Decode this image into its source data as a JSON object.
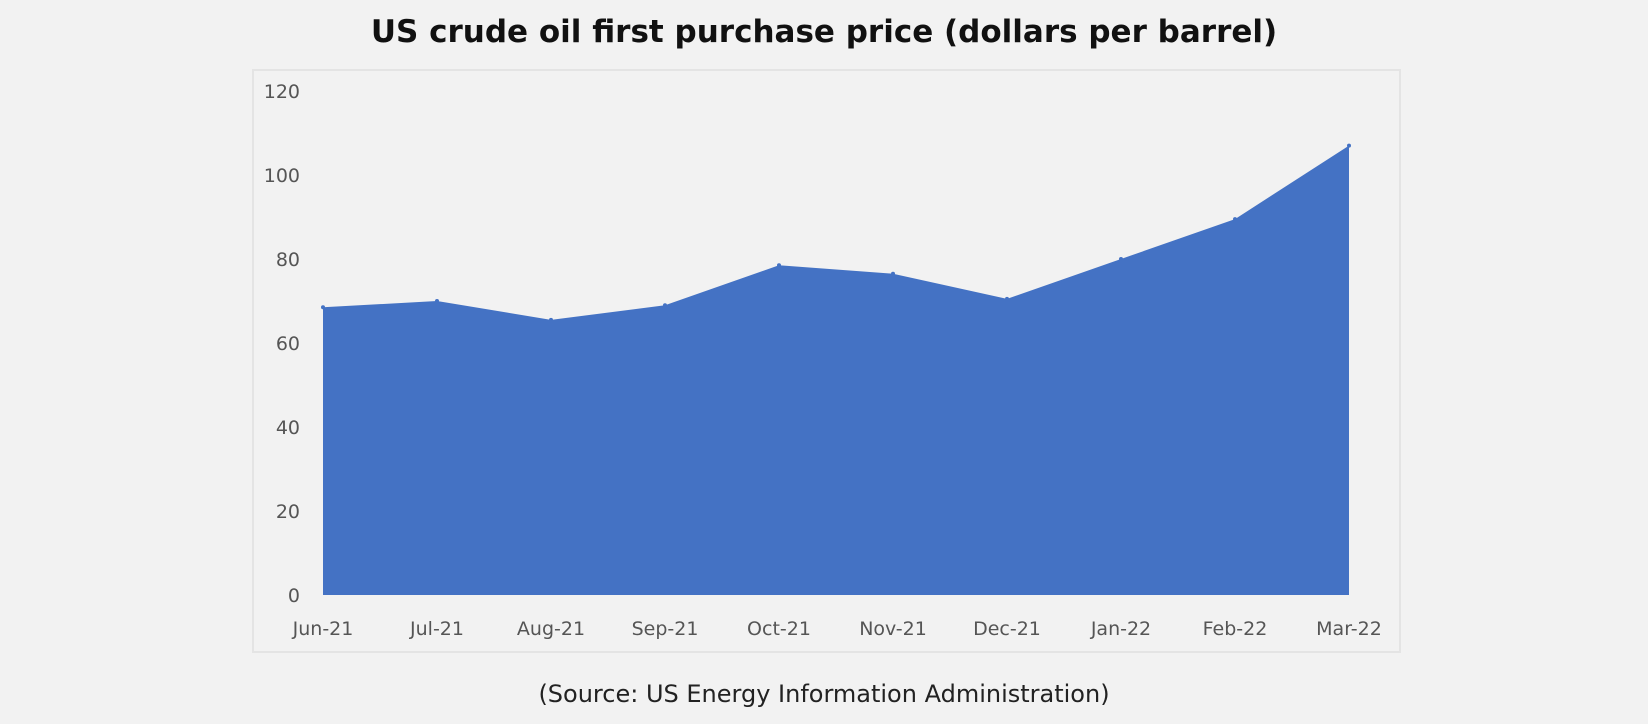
{
  "chart_data": {
    "type": "area",
    "title": "US crude oil first purchase price (dollars per barrel)",
    "categories": [
      "Jun-21",
      "Jul-21",
      "Aug-21",
      "Sep-21",
      "Oct-21",
      "Nov-21",
      "Dec-21",
      "Jan-22",
      "Feb-22",
      "Mar-22"
    ],
    "series": [
      {
        "values": [
          68.5,
          70,
          65.5,
          69,
          78.5,
          76.5,
          70.5,
          80,
          89.5,
          107
        ]
      }
    ],
    "y_ticks": [
      "0",
      "20",
      "40",
      "60",
      "80",
      "100",
      "120"
    ],
    "ylim": [
      0,
      120
    ],
    "xlabel": "",
    "ylabel": "",
    "grid": false,
    "legend": "none",
    "fill_color": "#4472c4"
  },
  "source": "(Source: US Energy Information Administration)"
}
